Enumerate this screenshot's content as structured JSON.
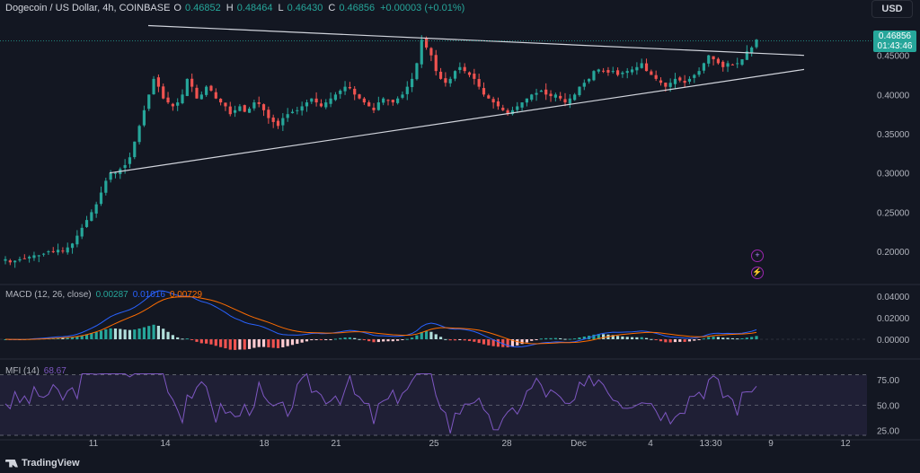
{
  "header": {
    "symbol": "Dogecoin / US Dollar, 4h, COINBASE",
    "open_key": "O",
    "open": "0.46852",
    "high_key": "H",
    "high": "0.48464",
    "low_key": "L",
    "low": "0.46430",
    "close_key": "C",
    "close": "0.46856",
    "change": "+0.00003 (+0.01%)"
  },
  "currency": "USD",
  "price_tag": {
    "price": "0.46856",
    "countdown": "01:43:46"
  },
  "macd_label": {
    "title": "MACD (12, 26, close)",
    "hist": "0.00287",
    "macd": "0.01016",
    "signal": "0.00729"
  },
  "mfi_label": {
    "title": "MFI (14)",
    "value": "68.67"
  },
  "branding": "TradingView",
  "colors": {
    "up": "#26a69a",
    "down": "#ef5350",
    "macd": "#2962ff",
    "signal": "#ff6d00",
    "mfi": "#7e57c2",
    "trendline": "#d1d4dc"
  },
  "chart_data": [
    {
      "type": "candlestick",
      "x_ticks": [
        "11",
        "14",
        "18",
        "21",
        "25",
        "28",
        "Dec",
        "4",
        "13:30",
        "9",
        "12"
      ],
      "y_ticks": [
        "0.20000",
        "0.25000",
        "0.30000",
        "0.35000",
        "0.40000",
        "0.45000"
      ],
      "ylim": [
        0.16,
        0.5
      ],
      "close_path": [
        0.19,
        0.186,
        0.188,
        0.19,
        0.191,
        0.193,
        0.195,
        0.195,
        0.197,
        0.2,
        0.2,
        0.202,
        0.2,
        0.205,
        0.21,
        0.22,
        0.23,
        0.24,
        0.25,
        0.26,
        0.275,
        0.29,
        0.3,
        0.3,
        0.305,
        0.31,
        0.32,
        0.34,
        0.36,
        0.38,
        0.4,
        0.42,
        0.41,
        0.395,
        0.39,
        0.385,
        0.39,
        0.4,
        0.42,
        0.41,
        0.395,
        0.4,
        0.41,
        0.405,
        0.395,
        0.39,
        0.385,
        0.375,
        0.38,
        0.385,
        0.378,
        0.382,
        0.39,
        0.388,
        0.38,
        0.37,
        0.365,
        0.36,
        0.37,
        0.375,
        0.378,
        0.38,
        0.385,
        0.39,
        0.395,
        0.39,
        0.385,
        0.39,
        0.395,
        0.4,
        0.405,
        0.41,
        0.408,
        0.4,
        0.395,
        0.39,
        0.385,
        0.38,
        0.39,
        0.395,
        0.392,
        0.39,
        0.395,
        0.4,
        0.41,
        0.42,
        0.44,
        0.47,
        0.46,
        0.45,
        0.43,
        0.42,
        0.415,
        0.42,
        0.43,
        0.435,
        0.43,
        0.425,
        0.42,
        0.41,
        0.4,
        0.395,
        0.39,
        0.385,
        0.38,
        0.375,
        0.38,
        0.385,
        0.39,
        0.395,
        0.4,
        0.402,
        0.405,
        0.4,
        0.398,
        0.4,
        0.395,
        0.39,
        0.395,
        0.4,
        0.41,
        0.415,
        0.42,
        0.43,
        0.432,
        0.43,
        0.428,
        0.43,
        0.425,
        0.428,
        0.43,
        0.432,
        0.435,
        0.44,
        0.43,
        0.425,
        0.42,
        0.415,
        0.41,
        0.415,
        0.42,
        0.418,
        0.415,
        0.42,
        0.425,
        0.43,
        0.44,
        0.45,
        0.445,
        0.44,
        0.435,
        0.44,
        0.438,
        0.44,
        0.445,
        0.455,
        0.46,
        0.47
      ],
      "trendlines": [
        {
          "name": "upper-resistance",
          "from": [
            "2024-11-13",
            0.488
          ],
          "to": [
            "2024-12-10",
            0.45
          ]
        },
        {
          "name": "lower-support",
          "from": [
            "2024-11-11",
            0.3
          ],
          "to": [
            "2024-12-10",
            0.432
          ]
        }
      ],
      "last_price": 0.46856
    },
    {
      "type": "macd",
      "params": [
        12,
        26
      ],
      "y_ticks": [
        "0.00000",
        "0.02000",
        "0.04000"
      ],
      "hist": 0.00287,
      "macd": 0.01016,
      "signal": 0.00729
    },
    {
      "type": "mfi",
      "period": 14,
      "y_ticks": [
        "25.00",
        "50.00",
        "75.00"
      ],
      "ylim": [
        20,
        85
      ],
      "bands": [
        20,
        80
      ],
      "value": 68.67
    }
  ]
}
